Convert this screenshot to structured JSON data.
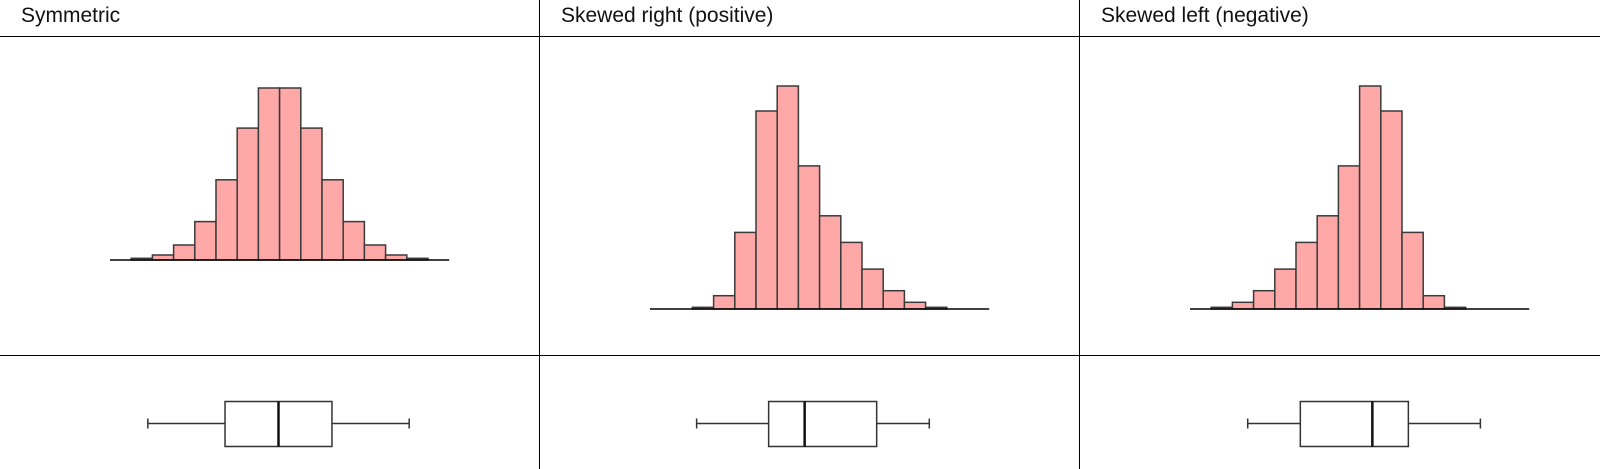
{
  "columns": [
    {
      "title": "Symmetric"
    },
    {
      "title": "Skewed right (positive)"
    },
    {
      "title": "Skewed left (negative)"
    }
  ],
  "colors": {
    "bar_fill": "#ffa8a8",
    "bar_stroke": "#3a3a3a",
    "grid_line": "#000000",
    "box_stroke": "#333333"
  },
  "chart_data": [
    {
      "type": "bar",
      "title": "Symmetric",
      "xlabel": "",
      "ylabel": "",
      "bin_count": 16,
      "values": [
        0,
        1,
        3,
        9,
        23,
        48,
        79,
        103,
        103,
        79,
        48,
        23,
        9,
        3,
        1,
        0
      ],
      "ylim": [
        0,
        103
      ],
      "grid": false
    },
    {
      "type": "bar",
      "title": "Skewed right (positive)",
      "xlabel": "",
      "ylabel": "",
      "bin_count": 16,
      "values": [
        0,
        0,
        1,
        8,
        46,
        119,
        134,
        86,
        56,
        40,
        24,
        11,
        4,
        1,
        0,
        0
      ],
      "ylim": [
        0,
        134
      ],
      "grid": false
    },
    {
      "type": "bar",
      "title": "Skewed left (negative)",
      "xlabel": "",
      "ylabel": "",
      "bin_count": 16,
      "values": [
        0,
        1,
        4,
        11,
        24,
        40,
        56,
        86,
        134,
        119,
        46,
        8,
        1,
        0,
        0,
        0
      ],
      "ylim": [
        0,
        134
      ],
      "grid": false
    },
    {
      "type": "boxplot",
      "title": "Symmetric",
      "min": 0.06,
      "q1": 0.32,
      "median": 0.5,
      "q3": 0.68,
      "max": 0.94
    },
    {
      "type": "boxplot",
      "title": "Skewed right (positive)",
      "min": 0.06,
      "q1": 0.32,
      "median": 0.45,
      "q3": 0.71,
      "max": 0.9
    },
    {
      "type": "boxplot",
      "title": "Skewed left (negative)",
      "min": 0.1,
      "q1": 0.29,
      "median": 0.55,
      "q3": 0.68,
      "max": 0.94
    }
  ]
}
